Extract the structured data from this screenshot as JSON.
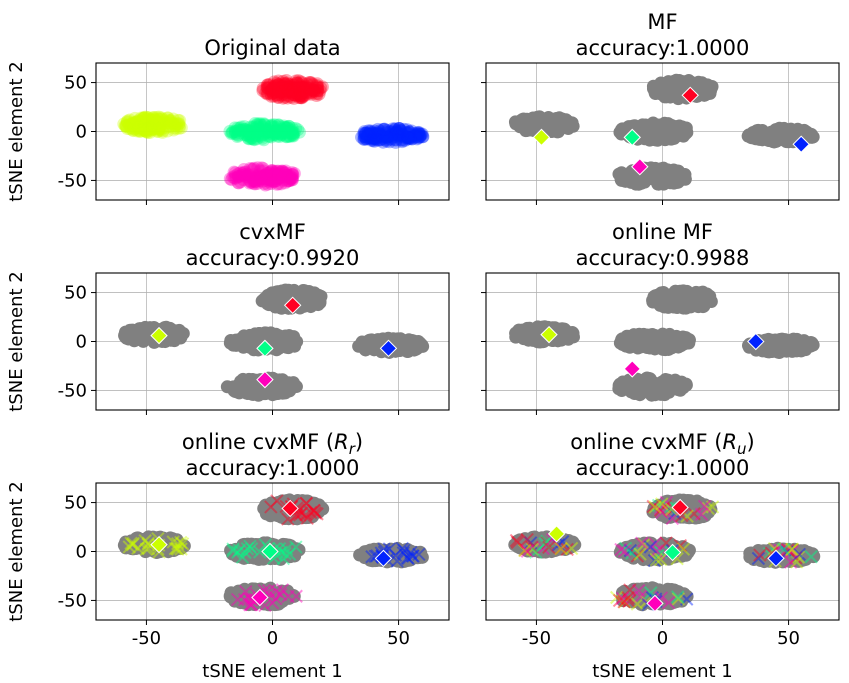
{
  "figure": {
    "ylabel": "tSNE element 2",
    "xlabel": "tSNE element 1"
  },
  "chart_data": {
    "type": "scatter",
    "layout": "3x2 grid, shared x and y axes",
    "xlim": [
      -70,
      70
    ],
    "ylim": [
      -70,
      70
    ],
    "xticks": [
      -50,
      0,
      50
    ],
    "yticks": [
      -50,
      0,
      50
    ],
    "grid": true,
    "clusters": [
      {
        "name": "yellow",
        "color": "#ccff00",
        "center": [
          -47,
          7
        ],
        "rx": 15,
        "ry": 10
      },
      {
        "name": "red",
        "color": "#ff0022",
        "center": [
          8,
          43
        ],
        "rx": 15,
        "ry": 12
      },
      {
        "name": "green",
        "color": "#00ff88",
        "center": [
          -3,
          0
        ],
        "rx": 17,
        "ry": 11
      },
      {
        "name": "blue",
        "color": "#0022ff",
        "center": [
          47,
          -4
        ],
        "rx": 16,
        "ry": 9
      },
      {
        "name": "magenta",
        "color": "#ff00bb",
        "center": [
          -4,
          -46
        ],
        "rx": 17,
        "ry": 11
      }
    ],
    "panels": [
      {
        "title_lines": [
          "Original data"
        ],
        "mode": "colored",
        "centroids": []
      },
      {
        "title_lines": [
          "MF",
          "accuracy:1.0000"
        ],
        "mode": "gray",
        "centroids": [
          {
            "cluster": "red",
            "x": 11,
            "y": 37
          },
          {
            "cluster": "yellow",
            "x": -48,
            "y": -6
          },
          {
            "cluster": "green",
            "x": -12,
            "y": -6
          },
          {
            "cluster": "magenta",
            "x": -9,
            "y": -36
          },
          {
            "cluster": "blue",
            "x": 55,
            "y": -13
          }
        ]
      },
      {
        "title_lines": [
          "cvxMF",
          "accuracy:0.9920"
        ],
        "mode": "gray",
        "centroids": [
          {
            "cluster": "red",
            "x": 8,
            "y": 37
          },
          {
            "cluster": "yellow",
            "x": -45,
            "y": 6
          },
          {
            "cluster": "green",
            "x": -3,
            "y": -7
          },
          {
            "cluster": "magenta",
            "x": -3,
            "y": -39
          },
          {
            "cluster": "blue",
            "x": 46,
            "y": -7
          }
        ]
      },
      {
        "title_lines": [
          "online MF",
          "accuracy:0.9988"
        ],
        "mode": "gray",
        "centroids": [
          {
            "cluster": "yellow",
            "x": -45,
            "y": 7
          },
          {
            "cluster": "blue",
            "x": 37,
            "y": 0
          },
          {
            "cluster": "magenta",
            "x": -12,
            "y": -28
          }
        ]
      },
      {
        "title_lines": [
          "online cvxMF (R_r)",
          "accuracy:1.0000"
        ],
        "mode": "gray",
        "subscript": "r",
        "crosses": "own",
        "centroids": [
          {
            "cluster": "red",
            "x": 7,
            "y": 44
          },
          {
            "cluster": "yellow",
            "x": -45,
            "y": 7
          },
          {
            "cluster": "green",
            "x": -1,
            "y": 0
          },
          {
            "cluster": "blue",
            "x": 44,
            "y": -7
          },
          {
            "cluster": "magenta",
            "x": -5,
            "y": -47
          }
        ]
      },
      {
        "title_lines": [
          "online cvxMF (R_u)",
          "accuracy:1.0000"
        ],
        "mode": "gray",
        "subscript": "u",
        "crosses": "mixed",
        "centroids": [
          {
            "cluster": "red",
            "x": 7,
            "y": 45
          },
          {
            "cluster": "yellow",
            "x": -42,
            "y": 18
          },
          {
            "cluster": "green",
            "x": 4,
            "y": -1
          },
          {
            "cluster": "blue",
            "x": 45,
            "y": -7
          },
          {
            "cluster": "magenta",
            "x": -3,
            "y": -53
          }
        ]
      }
    ]
  }
}
